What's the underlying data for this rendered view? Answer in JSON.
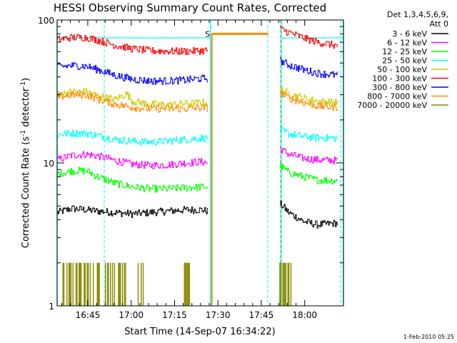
{
  "chart_data": {
    "type": "line",
    "title": "HESSI Observing Summary Count Rates, Corrected",
    "xlabel": "Start Time (14-Sep-07 16:34:22)",
    "ylabel": "Corrected Count Rate (s⁻¹ detector⁻¹)",
    "ylabel_main": "Corrected Count Rate (s",
    "ylabel_sup1": "-1",
    "ylabel_mid": " detector",
    "ylabel_sup2": "-1",
    "ylabel_end": ")",
    "x_axis": {
      "start": "16:34:22",
      "end": "18:13:00",
      "unit": "minutes",
      "range_minutes": [
        0,
        99
      ]
    },
    "x_tick_labels": [
      "16:45",
      "17:00",
      "17:15",
      "17:30",
      "17:45",
      "18:00"
    ],
    "x_tick_minutes": [
      10.6,
      25.6,
      40.6,
      55.6,
      70.6,
      85.6
    ],
    "y_axis": {
      "scale": "log",
      "range": [
        1,
        100
      ]
    },
    "y_tick_labels": [
      "1",
      "10",
      "100"
    ],
    "legend": {
      "position": "top-right",
      "header_line1": "Det 1,3,4,5,6,9,",
      "header_line2": "Att 0"
    },
    "flag_label": "S",
    "footer_date": "1-Feb-2010 05:25",
    "series": [
      {
        "name": "3 - 6 keV",
        "color": "#000000",
        "before": [
          [
            0,
            4.5
          ],
          [
            5,
            4.8
          ],
          [
            10,
            4.7
          ],
          [
            14,
            4.6
          ],
          [
            20,
            4.5
          ],
          [
            26,
            4.4
          ],
          [
            32,
            4.5
          ],
          [
            38,
            4.6
          ],
          [
            44,
            4.7
          ],
          [
            50,
            4.7
          ],
          [
            52,
            4.6
          ]
        ],
        "after": [
          [
            77,
            5.2
          ],
          [
            80,
            4.5
          ],
          [
            85,
            3.9
          ],
          [
            90,
            3.7
          ],
          [
            97,
            3.8
          ]
        ]
      },
      {
        "name": "6 - 12 keV",
        "color": "#ff00ff",
        "before": [
          [
            0,
            10.5
          ],
          [
            5,
            11.3
          ],
          [
            10,
            11.5
          ],
          [
            14,
            11.2
          ],
          [
            20,
            10.4
          ],
          [
            26,
            9.8
          ],
          [
            32,
            9.6
          ],
          [
            38,
            9.7
          ],
          [
            44,
            10.0
          ],
          [
            50,
            10.2
          ],
          [
            52,
            10.0
          ]
        ],
        "after": [
          [
            77,
            12.6
          ],
          [
            80,
            11.5
          ],
          [
            85,
            10.8
          ],
          [
            90,
            10.5
          ],
          [
            97,
            10.4
          ]
        ]
      },
      {
        "name": "12 - 25 keV",
        "color": "#00ff00",
        "before": [
          [
            0,
            8.4
          ],
          [
            5,
            8.8
          ],
          [
            10,
            8.8
          ],
          [
            14,
            8.0
          ],
          [
            20,
            7.2
          ],
          [
            26,
            6.8
          ],
          [
            32,
            6.6
          ],
          [
            38,
            6.6
          ],
          [
            44,
            6.7
          ],
          [
            50,
            6.8
          ],
          [
            52,
            6.8
          ]
        ],
        "after": [
          [
            77,
            9.6
          ],
          [
            80,
            8.6
          ],
          [
            85,
            8.0
          ],
          [
            90,
            7.6
          ],
          [
            97,
            7.5
          ]
        ]
      },
      {
        "name": "25 - 50 keV",
        "color": "#00ffff",
        "before": [
          [
            0,
            15.8
          ],
          [
            5,
            16.2
          ],
          [
            10,
            16.1
          ],
          [
            14,
            15.6
          ],
          [
            20,
            14.6
          ],
          [
            26,
            14.2
          ],
          [
            32,
            14.0
          ],
          [
            38,
            14.2
          ],
          [
            44,
            14.6
          ],
          [
            50,
            14.9
          ],
          [
            52,
            14.8
          ]
        ],
        "after": [
          [
            77,
            17.0
          ],
          [
            80,
            16.0
          ],
          [
            85,
            15.3
          ],
          [
            90,
            15.0
          ],
          [
            97,
            14.9
          ]
        ]
      },
      {
        "name": "50 - 100 keV",
        "color": "#cccc00",
        "before": [
          [
            0,
            30.0
          ],
          [
            5,
            31.5
          ],
          [
            10,
            31.5
          ],
          [
            14,
            29.5
          ],
          [
            20,
            27.8
          ],
          [
            24,
            30.5
          ],
          [
            26,
            27.0
          ],
          [
            32,
            25.8
          ],
          [
            38,
            25.5
          ],
          [
            44,
            26.0
          ],
          [
            50,
            26.4
          ],
          [
            52,
            26.2
          ]
        ],
        "after": [
          [
            77,
            33.0
          ],
          [
            80,
            30.5
          ],
          [
            85,
            28.5
          ],
          [
            90,
            27.0
          ],
          [
            97,
            26.5
          ]
        ]
      },
      {
        "name": "100 - 300 keV",
        "color": "#ff0000",
        "before": [
          [
            0,
            73.0
          ],
          [
            5,
            75.5
          ],
          [
            10,
            75.5
          ],
          [
            14,
            72.5
          ],
          [
            20,
            66.5
          ],
          [
            26,
            63.0
          ],
          [
            32,
            61.0
          ],
          [
            38,
            60.5
          ],
          [
            44,
            60.5
          ],
          [
            50,
            61.0
          ],
          [
            52,
            61.5
          ]
        ],
        "after": [
          [
            77,
            87.0
          ],
          [
            80,
            82.0
          ],
          [
            85,
            75.0
          ],
          [
            90,
            70.0
          ],
          [
            97,
            66.0
          ]
        ]
      },
      {
        "name": "300 - 800 keV",
        "color": "#0000ff",
        "before": [
          [
            0,
            47.0
          ],
          [
            5,
            48.0
          ],
          [
            10,
            47.5
          ],
          [
            14,
            45.0
          ],
          [
            20,
            41.0
          ],
          [
            26,
            38.5
          ],
          [
            32,
            37.5
          ],
          [
            38,
            37.5
          ],
          [
            44,
            38.0
          ],
          [
            50,
            39.0
          ],
          [
            52,
            39.0
          ]
        ],
        "after": [
          [
            77,
            52.0
          ],
          [
            80,
            48.5
          ],
          [
            85,
            45.0
          ],
          [
            90,
            42.5
          ],
          [
            97,
            41.0
          ]
        ]
      },
      {
        "name": "800 - 7000 keV",
        "color": "#ff8800",
        "before": [
          [
            0,
            29.0
          ],
          [
            5,
            30.0
          ],
          [
            10,
            30.0
          ],
          [
            14,
            28.0
          ],
          [
            20,
            25.8
          ],
          [
            26,
            24.5
          ],
          [
            32,
            24.0
          ],
          [
            38,
            24.0
          ],
          [
            44,
            24.0
          ],
          [
            50,
            24.3
          ],
          [
            52,
            24.3
          ]
        ],
        "after": [
          [
            77,
            31.0
          ],
          [
            80,
            28.5
          ],
          [
            85,
            26.5
          ],
          [
            90,
            25.0
          ],
          [
            97,
            24.5
          ]
        ]
      },
      {
        "name": "7000 - 20000 keV",
        "color": "#888800",
        "before": [
          [
            0,
            1.0
          ],
          [
            52,
            1.0
          ]
        ],
        "after": [
          [
            77,
            1.0
          ],
          [
            97,
            1.0
          ]
        ]
      }
    ],
    "attenuator_segment": {
      "color": "#ff8800",
      "value": 80,
      "range_minutes": [
        53.5,
        73.0
      ]
    },
    "cyan_intervals_minutes": [
      [
        0,
        53
      ],
      [
        77.5,
        99
      ]
    ],
    "dashed_markers_minutes": [
      16.3,
      72.8,
      77.2,
      98.0
    ]
  }
}
